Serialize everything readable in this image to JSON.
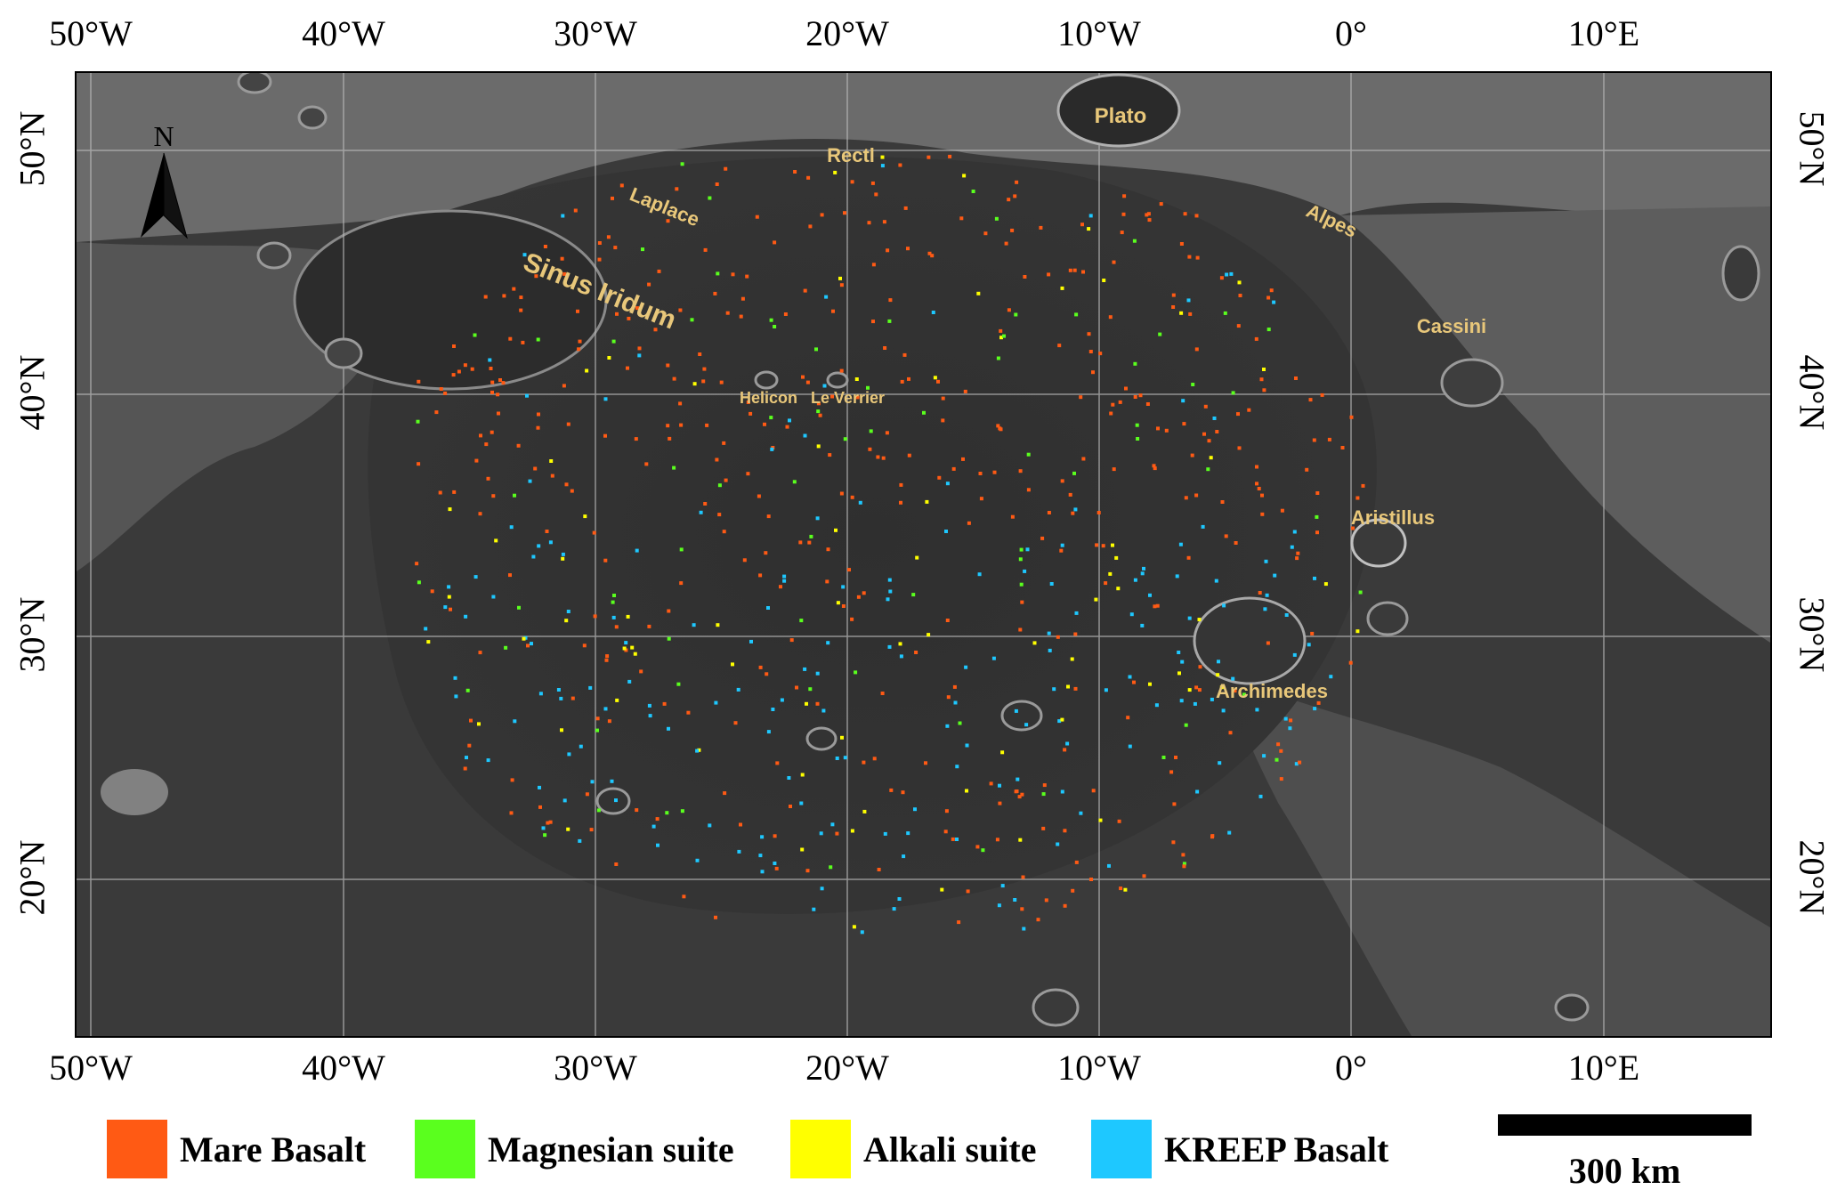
{
  "map": {
    "lon_ticks_top": [
      "50°W",
      "40°W",
      "30°W",
      "20°W",
      "10°W",
      "0°",
      "10°E"
    ],
    "lon_ticks_bottom": [
      "50°W",
      "40°W",
      "30°W",
      "20°W",
      "10°W",
      "0°",
      "10°E"
    ],
    "lat_ticks_left": [
      "50°N",
      "40°N",
      "30°N",
      "20°N"
    ],
    "lat_ticks_right": [
      "50°N",
      "40°N",
      "30°N",
      "20°N"
    ],
    "north_label": "N",
    "place_names": {
      "plato": "Plato",
      "rectl": "Rectl",
      "laplace": "Laplace",
      "alpes": "Alpes",
      "sinus_iridum": "Sinus Iridum",
      "cassini": "Cassini",
      "helicon": "Helicon",
      "le_verrier": "Le Verrier",
      "aristillus": "Aristillus",
      "archimedes": "Archimedes"
    }
  },
  "legend": {
    "items": [
      {
        "label": "Mare Basalt",
        "color": "#ff5a14"
      },
      {
        "label": "Magnesian suite",
        "color": "#5aff1e"
      },
      {
        "label": "Alkali suite",
        "color": "#ffff00"
      },
      {
        "label": "KREEP Basalt",
        "color": "#1ec8ff"
      }
    ]
  },
  "scale_bar": {
    "label": "300 km"
  }
}
